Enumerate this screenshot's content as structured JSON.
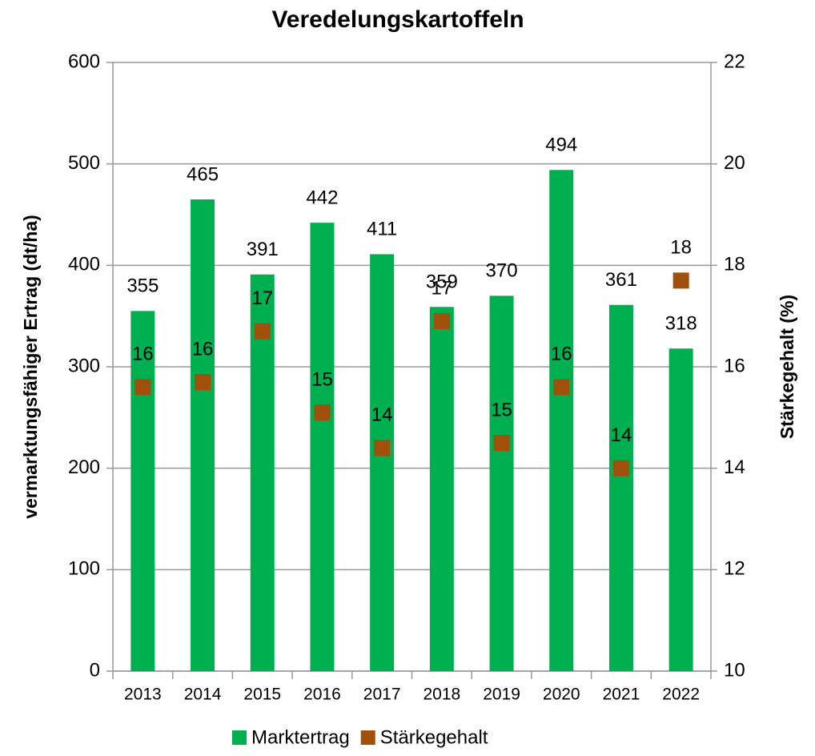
{
  "chart_data": {
    "type": "bar",
    "title": "Veredelungskartoffeln",
    "categories": [
      "2013",
      "2014",
      "2015",
      "2016",
      "2017",
      "2018",
      "2019",
      "2020",
      "2021",
      "2022"
    ],
    "ylabel": "vermarktungsfähiger Ertrag (dt/ha)",
    "y2label": "Stärkegehalt (%)",
    "ylim": [
      0,
      600
    ],
    "yticks": [
      0,
      100,
      200,
      300,
      400,
      500,
      600
    ],
    "y2lim": [
      10,
      22
    ],
    "y2ticks": [
      10,
      12,
      14,
      16,
      18,
      20,
      22
    ],
    "grid": true,
    "legend": "bottom",
    "series": [
      {
        "name": "Marktertrag",
        "type": "bar",
        "color": "#00b050",
        "values": [
          355,
          465,
          391,
          442,
          411,
          359,
          370,
          494,
          361,
          318
        ]
      },
      {
        "name": "Stärkegehalt",
        "type": "scatter",
        "axis": "y2",
        "color": "#a0500a",
        "values": [
          15.6,
          15.7,
          16.7,
          15.1,
          14.4,
          16.9,
          14.5,
          15.6,
          14.0,
          17.7
        ],
        "value_labels": [
          "16",
          "16",
          "17",
          "15",
          "14",
          "17",
          "15",
          "16",
          "14",
          "18"
        ]
      }
    ]
  }
}
